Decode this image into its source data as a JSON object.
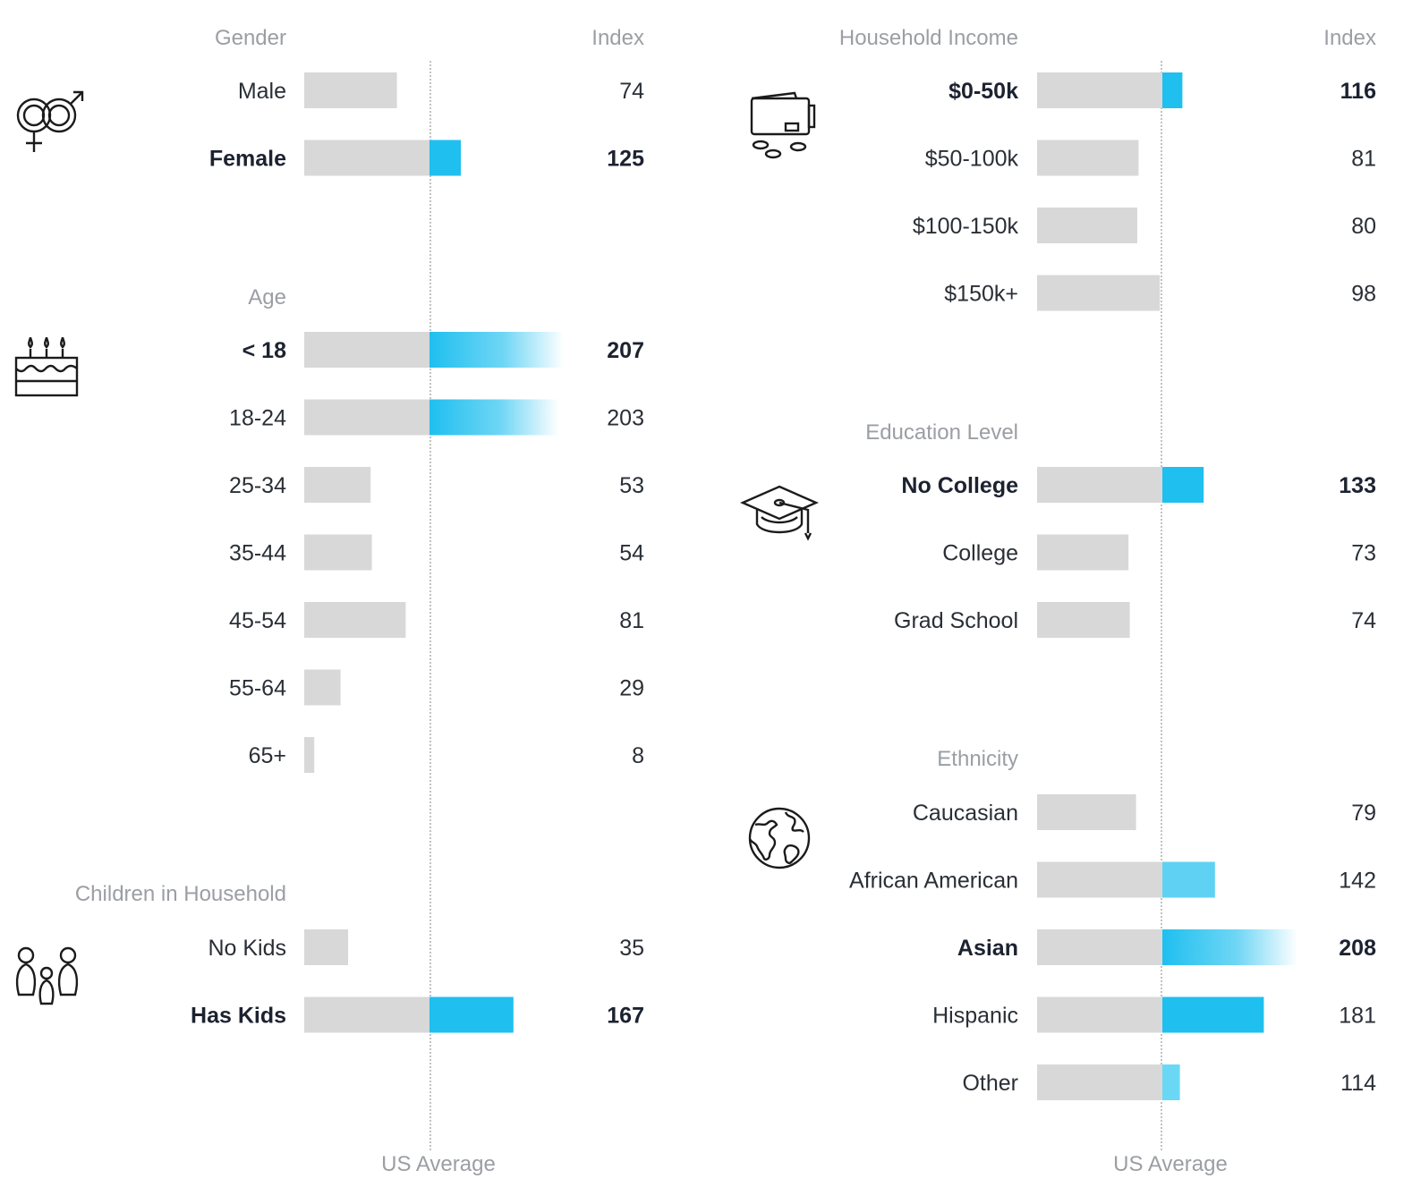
{
  "colors": {
    "bar_base": "#d8d8d8",
    "accent": "#1fbfef",
    "accent_light": "#5fd2f3",
    "label_header": "#9b9ea3",
    "text_main": "#2a2f36",
    "text_bold": "#1c2230",
    "ref_line": "#a8a8a8"
  },
  "chart_data": [
    {
      "type": "bar",
      "orientation": "horizontal",
      "panel": "left",
      "title": "Gender",
      "value_header": "Index",
      "reference_value": 100,
      "reference_label": "US Average",
      "icon": "gender-icon",
      "categories": [
        "Male",
        "Female"
      ],
      "values": [
        74,
        125
      ],
      "bold": [
        false,
        true
      ]
    },
    {
      "type": "bar",
      "orientation": "horizontal",
      "panel": "left",
      "title": "Age",
      "reference_value": 100,
      "icon": "birthday-cake-icon",
      "categories": [
        "< 18",
        "18-24",
        "25-34",
        "35-44",
        "45-54",
        "55-64",
        "65+"
      ],
      "values": [
        207,
        203,
        53,
        54,
        81,
        29,
        8
      ],
      "bold": [
        true,
        false,
        false,
        false,
        false,
        false,
        false
      ]
    },
    {
      "type": "bar",
      "orientation": "horizontal",
      "panel": "left",
      "title": "Children in Household",
      "reference_value": 100,
      "icon": "family-icon",
      "categories": [
        "No Kids",
        "Has Kids"
      ],
      "values": [
        35,
        167
      ],
      "bold": [
        false,
        true
      ]
    },
    {
      "type": "bar",
      "orientation": "horizontal",
      "panel": "right",
      "title": "Household Income",
      "value_header": "Index",
      "reference_value": 100,
      "reference_label": "US Average",
      "icon": "wallet-icon",
      "categories": [
        "$0-50k",
        "$50-100k",
        "$100-150k",
        "$150k+"
      ],
      "values": [
        116,
        81,
        80,
        98
      ],
      "bold": [
        true,
        false,
        false,
        false
      ]
    },
    {
      "type": "bar",
      "orientation": "horizontal",
      "panel": "right",
      "title": "Education Level",
      "reference_value": 100,
      "icon": "graduation-cap-icon",
      "categories": [
        "No College",
        "College",
        "Grad School"
      ],
      "values": [
        133,
        73,
        74
      ],
      "bold": [
        true,
        false,
        false
      ]
    },
    {
      "type": "bar",
      "orientation": "horizontal",
      "panel": "right",
      "title": "Ethnicity",
      "reference_value": 100,
      "icon": "globe-icon",
      "categories": [
        "Caucasian",
        "African American",
        "Asian",
        "Hispanic",
        "Other"
      ],
      "values": [
        79,
        142,
        208,
        181,
        114
      ],
      "bold": [
        false,
        false,
        true,
        false,
        false
      ]
    }
  ],
  "footer": {
    "left": "US Average",
    "right": "US Average"
  }
}
